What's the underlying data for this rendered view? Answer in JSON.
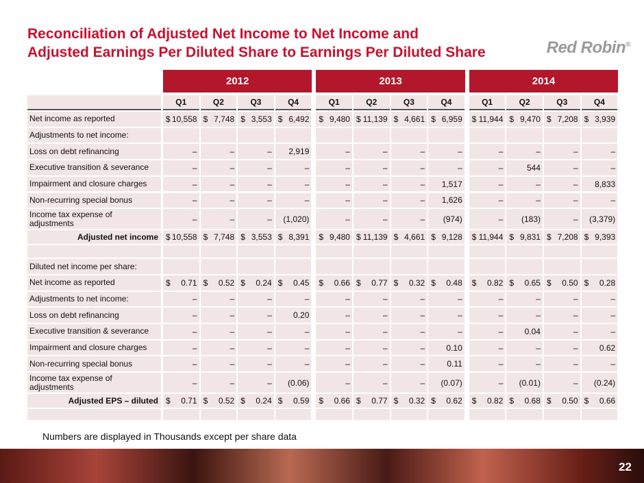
{
  "header": {
    "title_lines": [
      "Reconciliation of Adjusted Net Income to Net Income and",
      "Adjusted Earnings Per Diluted Share to Earnings Per Diluted Share"
    ],
    "logo": "Red Robin",
    "logo_mark": "®"
  },
  "table": {
    "years": [
      "2012",
      "2013",
      "2014"
    ],
    "quarters": [
      "Q1",
      "Q2",
      "Q3",
      "Q4",
      "Q1",
      "Q2",
      "Q3",
      "Q4",
      "Q1",
      "Q2",
      "Q3",
      "Q4"
    ],
    "rows": [
      {
        "label": "Net income as reported",
        "currency": "$",
        "cells": [
          "10,558",
          "7,748",
          "3,553",
          "6,492",
          "9,480",
          "11,139",
          "4,661",
          "6,959",
          "11,944",
          "9,470",
          "7,208",
          "3,939"
        ]
      },
      {
        "label": "Adjustments to net income:"
      },
      {
        "label": "Loss on debt refinancing",
        "cells": [
          "–",
          "–",
          "–",
          "2,919",
          "–",
          "–",
          "–",
          "–",
          "–",
          "–",
          "–",
          "–"
        ]
      },
      {
        "label": "Executive transition & severance",
        "cells": [
          "–",
          "–",
          "–",
          "–",
          "–",
          "–",
          "–",
          "–",
          "–",
          "544",
          "–",
          "–"
        ]
      },
      {
        "label": "Impairment and closure charges",
        "cells": [
          "–",
          "–",
          "–",
          "–",
          "–",
          "–",
          "–",
          "1,517",
          "–",
          "–",
          "–",
          "8,833"
        ]
      },
      {
        "label": "Non-recurring special bonus",
        "cells": [
          "–",
          "–",
          "–",
          "–",
          "–",
          "–",
          "–",
          "1,626",
          "–",
          "–",
          "–",
          "–"
        ]
      },
      {
        "label": "Income tax expense of adjustments",
        "cells": [
          "–",
          "–",
          "–",
          "(1,020)",
          "–",
          "–",
          "–",
          "(974)",
          "–",
          "(183)",
          "–",
          "(3,379)"
        ]
      },
      {
        "label": "Adjusted net income",
        "currency": "$",
        "cells": [
          "10,558",
          "7,748",
          "3,553",
          "8,391",
          "9,480",
          "11,139",
          "4,661",
          "9,128",
          "11,944",
          "9,831",
          "7,208",
          "9,393"
        ]
      },
      {
        "label": "Diluted net income per share:"
      },
      {
        "label": "Net income as reported",
        "currency": "$",
        "cells": [
          "0.71",
          "0.52",
          "0.24",
          "0.45",
          "0.66",
          "0.77",
          "0.32",
          "0.48",
          "0.82",
          "0.65",
          "0.50",
          "0.28"
        ]
      },
      {
        "label": "Adjustments to net income:",
        "cells": [
          "–",
          "–",
          "–",
          "–",
          "–",
          "–",
          "–",
          "–",
          "–",
          "–",
          "–",
          "–"
        ]
      },
      {
        "label": "Loss on debt refinancing",
        "cells": [
          "–",
          "–",
          "–",
          "0.20",
          "–",
          "–",
          "–",
          "–",
          "–",
          "–",
          "–",
          "–"
        ]
      },
      {
        "label": "Executive transition & severance",
        "cells": [
          "–",
          "–",
          "–",
          "–",
          "–",
          "–",
          "–",
          "–",
          "–",
          "0.04",
          "–",
          "–"
        ]
      },
      {
        "label": "Impairment and closure charges",
        "cells": [
          "–",
          "–",
          "–",
          "–",
          "–",
          "–",
          "–",
          "0.10",
          "–",
          "–",
          "–",
          "0.62"
        ]
      },
      {
        "label": "Non-recurring special bonus",
        "cells": [
          "–",
          "–",
          "–",
          "–",
          "–",
          "–",
          "–",
          "0.11",
          "–",
          "–",
          "–",
          "–"
        ]
      },
      {
        "label": "Income tax expense of adjustments",
        "cells": [
          "–",
          "–",
          "–",
          "(0.06)",
          "–",
          "–",
          "–",
          "(0.07)",
          "–",
          "(0.01)",
          "–",
          "(0.24)"
        ]
      },
      {
        "label": "Adjusted EPS – diluted",
        "currency": "$",
        "cells": [
          "0.71",
          "0.52",
          "0.24",
          "0.59",
          "0.66",
          "0.77",
          "0.32",
          "0.62",
          "0.82",
          "0.68",
          "0.50",
          "0.66"
        ]
      }
    ]
  },
  "footnote": "Numbers are displayed in Thousands except per share data",
  "page_number": "22"
}
